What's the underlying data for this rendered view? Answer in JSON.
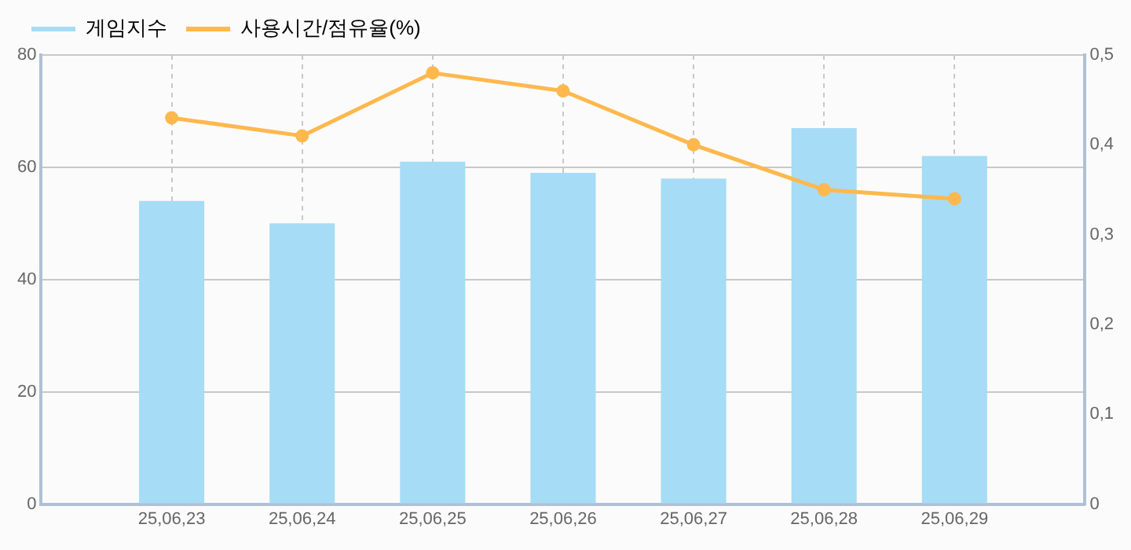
{
  "chart_data": {
    "type": "bar",
    "categories": [
      null,
      "25,06,23",
      "25,06,24",
      "25,06,25",
      "25,06,26",
      "25,06,27",
      "25,06,28",
      "25,06,29",
      null
    ],
    "series": [
      {
        "name": "게임지수",
        "color": "#a6dcf5",
        "values": [
          null,
          54,
          50,
          61,
          59,
          58,
          67,
          62,
          null
        ]
      },
      {
        "name": "사용시간/점유율(%)",
        "type": "line",
        "axis": "y2",
        "color": "#ffb84d",
        "values": [
          null,
          0.43,
          0.41,
          0.48,
          0.46,
          0.4,
          0.35,
          0.34,
          null
        ]
      }
    ],
    "ylim": [
      0,
      80
    ],
    "yticks": [
      0,
      20,
      40,
      60,
      80
    ],
    "y2lim": [
      0,
      0.5
    ],
    "y2ticks": [
      {
        "value": 0,
        "label": "0"
      },
      {
        "value": 0.1,
        "label": "0,1"
      },
      {
        "value": 0.2,
        "label": "0,2"
      },
      {
        "value": 0.3,
        "label": "0,3"
      },
      {
        "value": 0.4,
        "label": "0,4"
      },
      {
        "value": 0.5,
        "label": "0,5"
      }
    ],
    "grid": true,
    "legend": "top left",
    "marker": "circle",
    "line_style": "solid"
  }
}
